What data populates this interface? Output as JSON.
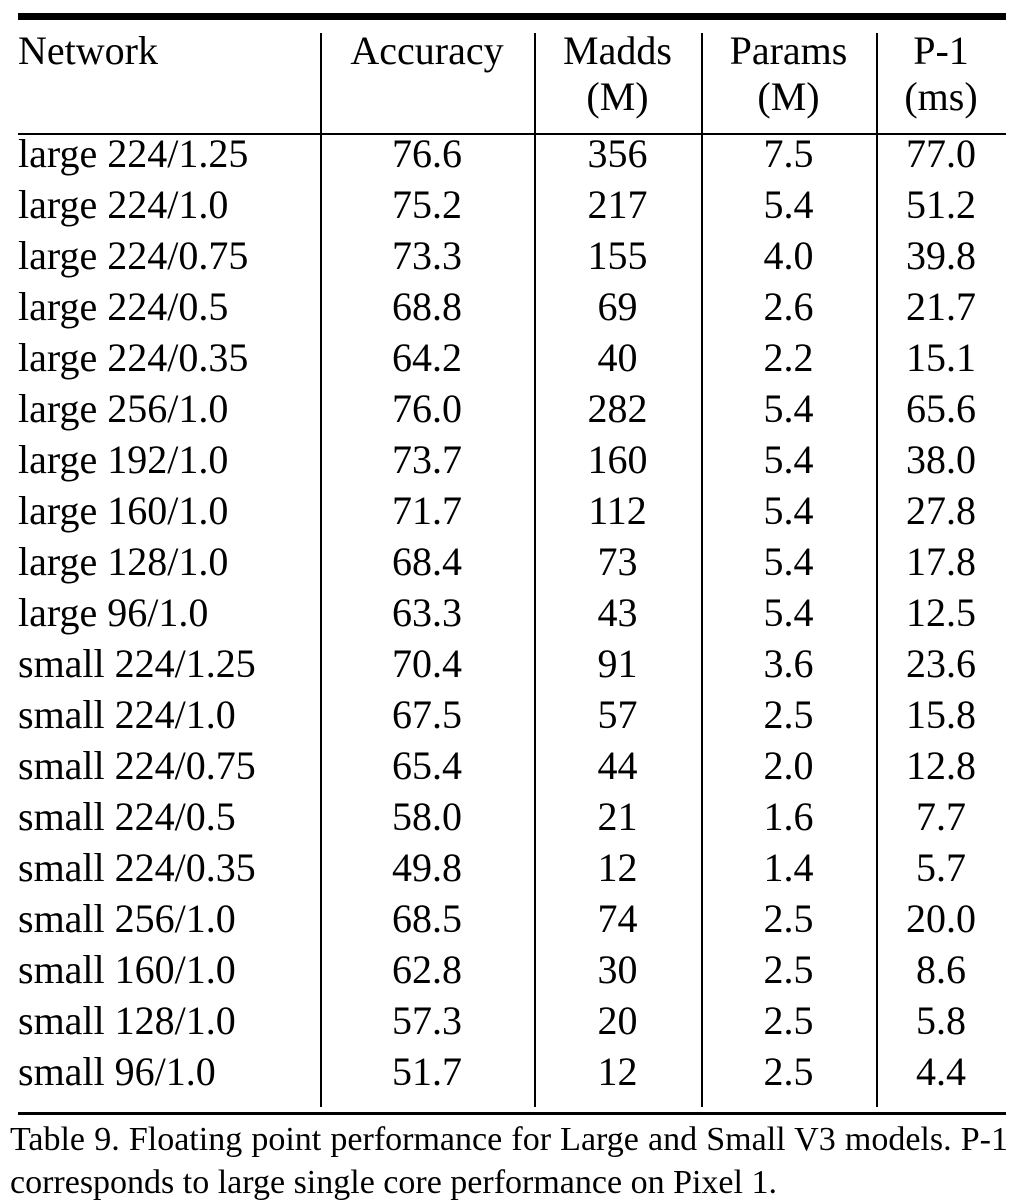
{
  "table": {
    "headers": {
      "network": "Network",
      "accuracy": "Accuracy",
      "madds": "Madds",
      "madds_unit": "(M)",
      "params": "Params",
      "params_unit": "(M)",
      "p1": "P-1",
      "p1_unit": "(ms)"
    },
    "rows": [
      {
        "network": "large 224/1.25",
        "accuracy": "76.6",
        "madds": "356",
        "params": "7.5",
        "p1": "77.0"
      },
      {
        "network": "large 224/1.0",
        "accuracy": "75.2",
        "madds": "217",
        "params": "5.4",
        "p1": "51.2"
      },
      {
        "network": "large 224/0.75",
        "accuracy": "73.3",
        "madds": "155",
        "params": "4.0",
        "p1": "39.8"
      },
      {
        "network": "large 224/0.5",
        "accuracy": "68.8",
        "madds": "69",
        "params": "2.6",
        "p1": "21.7"
      },
      {
        "network": "large 224/0.35",
        "accuracy": "64.2",
        "madds": "40",
        "params": "2.2",
        "p1": "15.1"
      },
      {
        "network": "large 256/1.0",
        "accuracy": "76.0",
        "madds": "282",
        "params": "5.4",
        "p1": "65.6"
      },
      {
        "network": "large 192/1.0",
        "accuracy": "73.7",
        "madds": "160",
        "params": "5.4",
        "p1": "38.0"
      },
      {
        "network": "large 160/1.0",
        "accuracy": "71.7",
        "madds": "112",
        "params": "5.4",
        "p1": "27.8"
      },
      {
        "network": "large 128/1.0",
        "accuracy": "68.4",
        "madds": "73",
        "params": "5.4",
        "p1": "17.8"
      },
      {
        "network": "large 96/1.0",
        "accuracy": "63.3",
        "madds": "43",
        "params": "5.4",
        "p1": "12.5"
      },
      {
        "network": "small 224/1.25",
        "accuracy": "70.4",
        "madds": "91",
        "params": "3.6",
        "p1": "23.6"
      },
      {
        "network": "small 224/1.0",
        "accuracy": "67.5",
        "madds": "57",
        "params": "2.5",
        "p1": "15.8"
      },
      {
        "network": "small 224/0.75",
        "accuracy": "65.4",
        "madds": "44",
        "params": "2.0",
        "p1": "12.8"
      },
      {
        "network": "small 224/0.5",
        "accuracy": "58.0",
        "madds": "21",
        "params": "1.6",
        "p1": "7.7"
      },
      {
        "network": "small 224/0.35",
        "accuracy": "49.8",
        "madds": "12",
        "params": "1.4",
        "p1": "5.7"
      },
      {
        "network": "small 256/1.0",
        "accuracy": "68.5",
        "madds": "74",
        "params": "2.5",
        "p1": "20.0"
      },
      {
        "network": "small 160/1.0",
        "accuracy": "62.8",
        "madds": "30",
        "params": "2.5",
        "p1": "8.6"
      },
      {
        "network": "small 128/1.0",
        "accuracy": "57.3",
        "madds": "20",
        "params": "2.5",
        "p1": "5.8"
      },
      {
        "network": "small 96/1.0",
        "accuracy": "51.7",
        "madds": "12",
        "params": "2.5",
        "p1": "4.4"
      }
    ]
  },
  "caption": "Table 9. Floating point performance for Large and Small V3 models. P-1 corresponds to large single core performance on Pixel 1."
}
